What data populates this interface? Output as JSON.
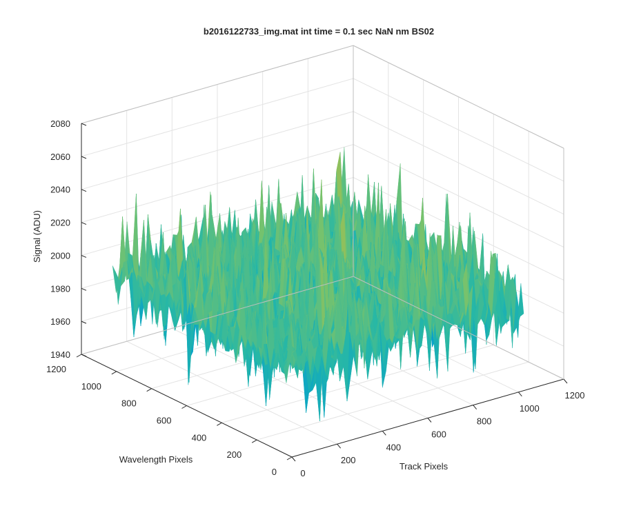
{
  "chart_data": {
    "type": "surface",
    "title": "b2016122733_img.mat int time = 0.1 sec  NaN nm BS02",
    "xlabel": "Track Pixels",
    "ylabel": "Wavelength Pixels",
    "zlabel": "Signal (ADU)",
    "xlim": [
      0,
      1200
    ],
    "ylim": [
      0,
      1200
    ],
    "zlim": [
      1940,
      2080
    ],
    "x_ticks": [
      "0",
      "200",
      "400",
      "600",
      "800",
      "1000",
      "1200"
    ],
    "y_ticks": [
      "0",
      "200",
      "400",
      "600",
      "800",
      "1000",
      "1200"
    ],
    "z_ticks": [
      "1940",
      "1960",
      "1980",
      "2000",
      "2020",
      "2040",
      "2060",
      "2080"
    ],
    "data_extent": {
      "x": [
        1,
        1024
      ],
      "y": [
        1,
        1024
      ]
    },
    "z_typical": 1995,
    "z_noise_min": 1953,
    "z_noise_max": 2045,
    "colormap": "parula",
    "grid": true,
    "view": "3-D perspective"
  }
}
